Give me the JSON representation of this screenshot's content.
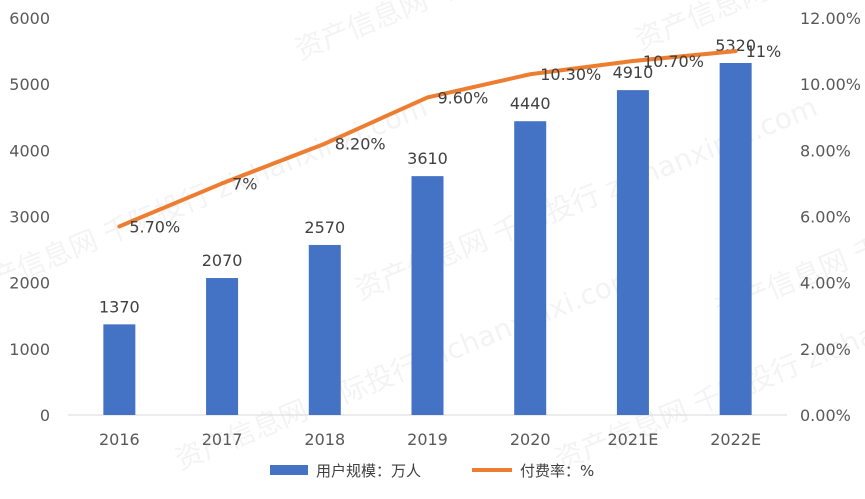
{
  "chart_data": {
    "type": "bar+line",
    "categories": [
      "2016",
      "2017",
      "2018",
      "2019",
      "2020",
      "2021E",
      "2022E"
    ],
    "series": [
      {
        "name": "用户规模：万人",
        "type": "bar",
        "axis": "left",
        "color": "#4472C4",
        "values": [
          1370,
          2070,
          2570,
          3610,
          4440,
          4910,
          5320
        ],
        "labels": [
          "1370",
          "2070",
          "2570",
          "3610",
          "4440",
          "4910",
          "5320"
        ]
      },
      {
        "name": "付费率：%",
        "type": "line",
        "axis": "right",
        "color": "#ED7D31",
        "values": [
          5.7,
          7.0,
          8.2,
          9.6,
          10.3,
          10.7,
          11.0
        ],
        "labels": [
          "5.70%",
          "7%",
          "8.20%",
          "9.60%",
          "10.30%",
          "10.70%",
          "11%"
        ]
      }
    ],
    "y_left": {
      "range": [
        0,
        6000
      ],
      "ticks": [
        0,
        1000,
        2000,
        3000,
        4000,
        5000,
        6000
      ],
      "tick_labels": [
        "0",
        "1000",
        "2000",
        "3000",
        "4000",
        "5000",
        "6000"
      ]
    },
    "y_right": {
      "range": [
        0,
        12
      ],
      "ticks": [
        0,
        2,
        4,
        6,
        8,
        10,
        12
      ],
      "tick_labels": [
        "0.00%",
        "2.00%",
        "4.00%",
        "6.00%",
        "8.00%",
        "10.00%",
        "12.00%"
      ]
    },
    "grid": false,
    "legend": "bottom",
    "watermark": "资产信息网 千际投行 zichanxinxi.com"
  }
}
